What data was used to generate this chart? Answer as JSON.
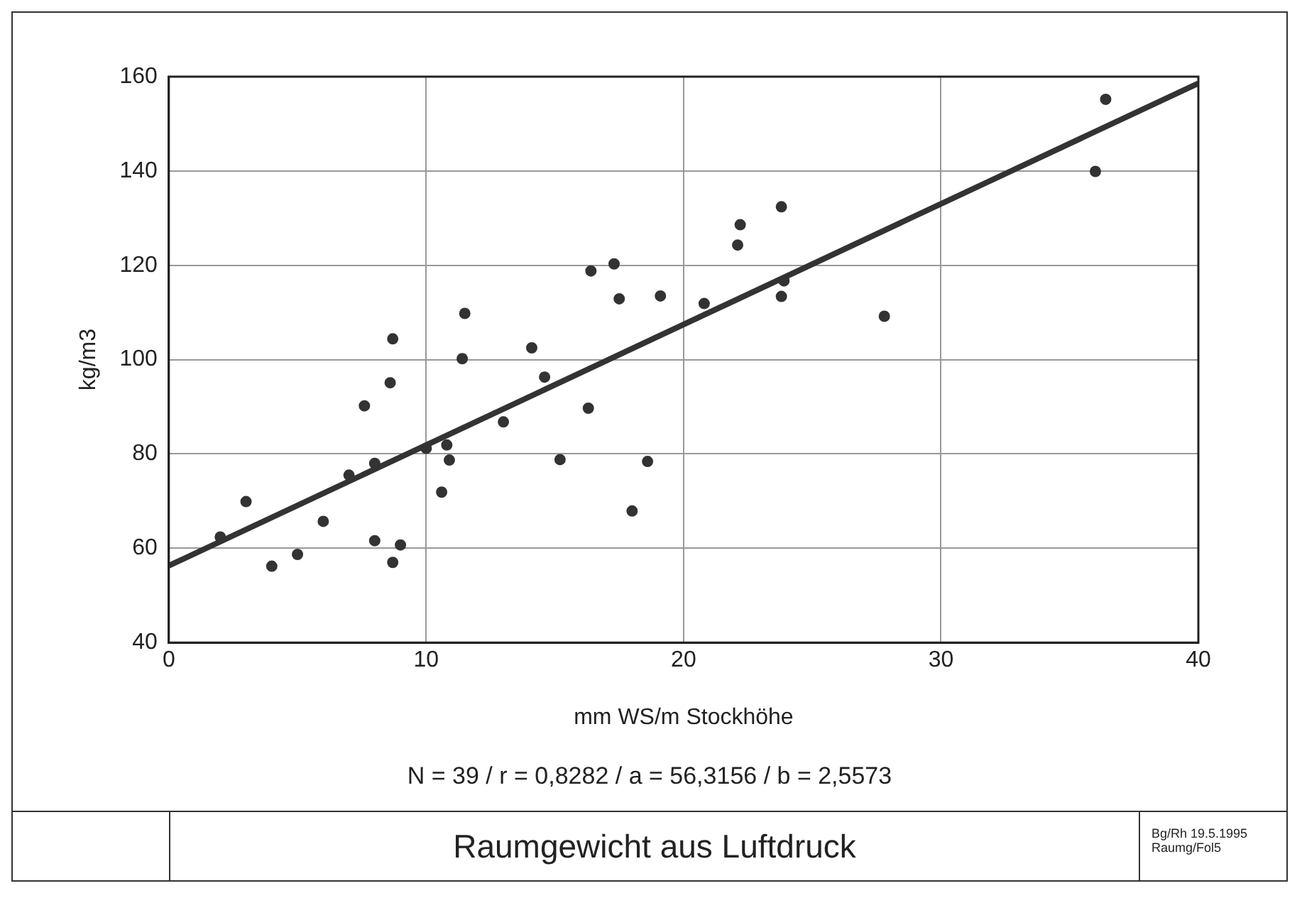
{
  "chart_data": {
    "type": "scatter",
    "title": "Raumgewicht aus Luftdruck",
    "xlabel": "mm WS/m Stockhöhe",
    "ylabel": "kg/m3",
    "series": [
      {
        "marker": "circle",
        "color": "#333333",
        "x": [
          2.0,
          3.0,
          4.0,
          5.0,
          6.0,
          7.0,
          7.6,
          8.0,
          8.0,
          8.6,
          8.7,
          8.7,
          9.0,
          10.0,
          10.6,
          10.8,
          10.9,
          11.4,
          11.5,
          13.0,
          14.1,
          14.6,
          15.2,
          16.3,
          16.4,
          17.3,
          17.5,
          18.0,
          18.6,
          19.1,
          20.8,
          22.1,
          22.2,
          23.8,
          23.9,
          23.8,
          27.8,
          36.0,
          36.4
        ],
        "values": [
          62.4,
          69.9,
          56.2,
          58.7,
          65.7,
          75.5,
          90.2,
          78.0,
          61.6,
          95.1,
          104.4,
          57.0,
          60.7,
          81.2,
          71.9,
          81.9,
          78.7,
          100.2,
          109.8,
          86.8,
          102.5,
          96.3,
          78.8,
          89.7,
          118.8,
          120.3,
          112.9,
          67.9,
          78.4,
          113.5,
          111.9,
          124.3,
          128.6,
          132.4,
          116.7,
          113.4,
          109.2,
          139.9,
          155.2
        ]
      },
      {
        "type": "line",
        "marker": "none",
        "color": "#333333",
        "x": [
          0,
          40
        ],
        "values": [
          56.3,
          158.6
        ]
      }
    ],
    "xlim": [
      0,
      40
    ],
    "xticks": [
      0,
      10,
      20,
      30,
      40
    ],
    "ylim": [
      40,
      160
    ],
    "yticks": [
      40,
      60,
      80,
      100,
      120,
      140,
      160
    ],
    "grid": true,
    "legend": false,
    "annotations": [
      "N = 39 / r = 0,8282 / a = 56,3156 / b = 2,5573",
      "Bg/Rh 19.5.1995",
      "Raumg/Fol5"
    ]
  }
}
